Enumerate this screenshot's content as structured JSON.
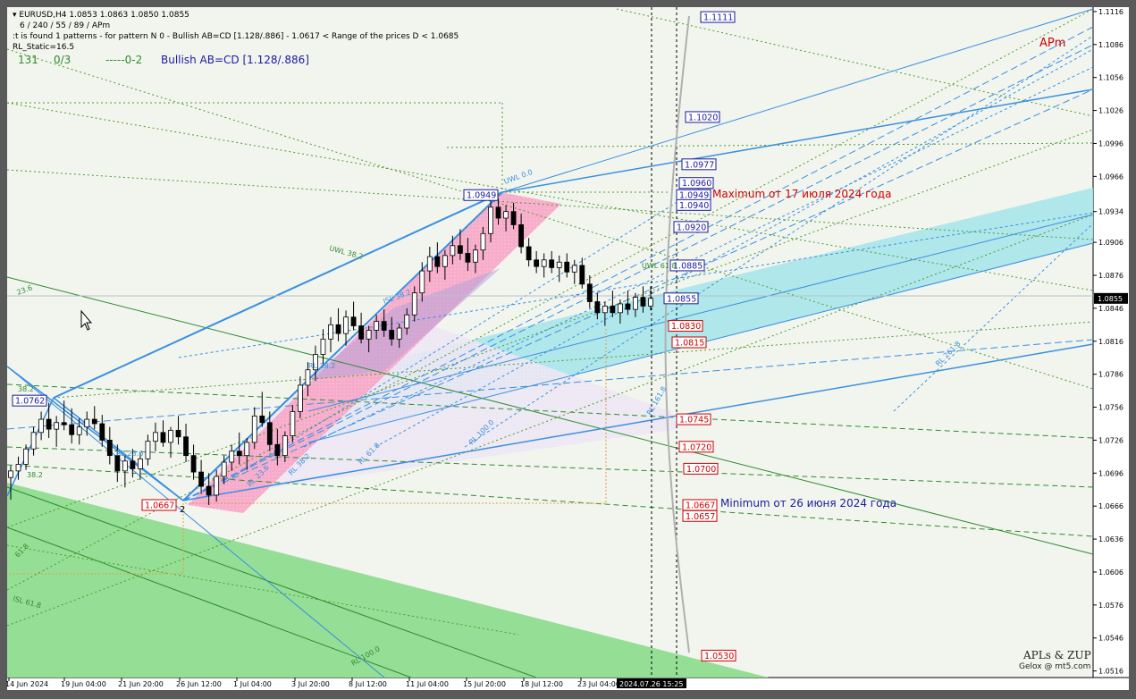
{
  "header": {
    "symbol_line": "EURUSD,H4  1.0853 1.0863 1.0850 1.0855",
    "zigzag_params": "6 / 240 / 55 / 89 / APm",
    "pattern_line": ":t is found 1 patterns  -  for pattern N 0 - Bullish AB=CD [1.128/.886] - 1.0617 < Range of the prices D < 1.0685",
    "rl_static": "RL_Static=16.5",
    "counter_a": "131",
    "counter_b": "0/3",
    "counter_c": "-----0-2",
    "pattern_name": "Bullish AB=CD [1.128/.886]",
    "apm_mark": "APm",
    "signature_1": "APLs & ZUP",
    "signature_2": "Gelox @ mt5.com"
  },
  "annotations": {
    "max_note": "Maximum от 17 июля 2024 года",
    "min_note": "Minimum от 26 июня 2024 года",
    "point_2": "2",
    "fib_labels": [
      "UWL 0.0",
      "UWL 38.2",
      "UWL 61.8",
      "RL 23.6",
      "RL 38.2",
      "RL 61.8",
      "RL 100.0",
      "RL 161.8",
      "RL 261.8",
      "RL 100.0",
      "RL 23.6",
      "23.6",
      "38.2",
      "38.2",
      "61.8",
      "ISL 61.8",
      "ISL 38.2",
      "RL 38.2"
    ]
  },
  "colors": {
    "background": "#f2f5ee",
    "bull_candle": "#ffffff",
    "candle_border": "#000000",
    "blue_channel": "#a8e6ea",
    "pink_zone": "#f7a8c8",
    "green_zone": "#8fdc8f",
    "blue_line": "#3a8fe0",
    "green_line": "#2e8b2e",
    "red_label": "#cc0000",
    "blue_label": "#1a1aa0"
  },
  "chart_data": {
    "type": "candlestick",
    "symbol": "EURUSD",
    "timeframe": "H4",
    "current_price": "1.0855",
    "ylim": [
      1.051,
      1.112
    ],
    "yticks": [
      "1.1116",
      "1.1086",
      "1.1056",
      "1.1026",
      "1.0996",
      "1.0966",
      "1.0934",
      "1.0906",
      "1.0876",
      "1.0846",
      "1.0816",
      "1.0786",
      "1.0756",
      "1.0726",
      "1.0696",
      "1.0666",
      "1.0636",
      "1.0606",
      "1.0576",
      "1.0546",
      "1.0516"
    ],
    "xticks": [
      "14 Jun 2024",
      "19 Jun 04:00",
      "21 Jun 20:00",
      "26 Jun 12:00",
      "1 Jul 04:00",
      "3 Jul 20:00",
      "8 Jul 12:00",
      "11 Jul 04:00",
      "15 Jul 20:00",
      "18 Jul 12:00",
      "23 Jul 04:00"
    ],
    "cursor_time": "2024.07.26 15:25",
    "price_boxes_blue": [
      {
        "label": "1.1111",
        "value": 1.1111
      },
      {
        "label": "1.1020",
        "value": 1.102
      },
      {
        "label": "1.0977",
        "value": 1.0977
      },
      {
        "label": "1.0960",
        "value": 1.096
      },
      {
        "label": "1.0949",
        "value": 1.0949
      },
      {
        "label": "1.0940",
        "value": 1.094
      },
      {
        "label": "1.0920",
        "value": 1.092
      },
      {
        "label": "1.0885",
        "value": 1.0885
      },
      {
        "label": "1.0855",
        "value": 1.0855
      },
      {
        "label": "1.0949",
        "value": 1.0949
      },
      {
        "label": "1.0762",
        "value": 1.0762
      }
    ],
    "price_boxes_red": [
      {
        "label": "1.0830",
        "value": 1.083
      },
      {
        "label": "1.0815",
        "value": 1.0815
      },
      {
        "label": "1.0745",
        "value": 1.0745
      },
      {
        "label": "1.0720",
        "value": 1.072
      },
      {
        "label": "1.0700",
        "value": 1.07
      },
      {
        "label": "1.0667",
        "value": 1.0667
      },
      {
        "label": "1.0657",
        "value": 1.0657
      },
      {
        "label": "1.0530",
        "value": 1.053
      },
      {
        "label": "1.0667",
        "value": 1.0667
      }
    ],
    "candles": [
      {
        "o": 1.0692,
        "h": 1.0703,
        "l": 1.0672,
        "c": 1.0698
      },
      {
        "o": 1.0698,
        "h": 1.0711,
        "l": 1.069,
        "c": 1.0704
      },
      {
        "o": 1.0704,
        "h": 1.0722,
        "l": 1.0699,
        "c": 1.0718
      },
      {
        "o": 1.0718,
        "h": 1.0738,
        "l": 1.0712,
        "c": 1.0733
      },
      {
        "o": 1.0733,
        "h": 1.0752,
        "l": 1.0726,
        "c": 1.0745
      },
      {
        "o": 1.0745,
        "h": 1.076,
        "l": 1.0728,
        "c": 1.0736
      },
      {
        "o": 1.0736,
        "h": 1.0748,
        "l": 1.072,
        "c": 1.0742
      },
      {
        "o": 1.0742,
        "h": 1.0762,
        "l": 1.0735,
        "c": 1.074
      },
      {
        "o": 1.074,
        "h": 1.0755,
        "l": 1.0723,
        "c": 1.0731
      },
      {
        "o": 1.0731,
        "h": 1.0746,
        "l": 1.0722,
        "c": 1.0738
      },
      {
        "o": 1.0738,
        "h": 1.0752,
        "l": 1.073,
        "c": 1.0745
      },
      {
        "o": 1.0745,
        "h": 1.0757,
        "l": 1.0736,
        "c": 1.0741
      },
      {
        "o": 1.0741,
        "h": 1.0749,
        "l": 1.072,
        "c": 1.0726
      },
      {
        "o": 1.0726,
        "h": 1.0738,
        "l": 1.0704,
        "c": 1.0712
      },
      {
        "o": 1.0712,
        "h": 1.0722,
        "l": 1.0688,
        "c": 1.0698
      },
      {
        "o": 1.0698,
        "h": 1.0712,
        "l": 1.0683,
        "c": 1.0707
      },
      {
        "o": 1.0707,
        "h": 1.0718,
        "l": 1.0692,
        "c": 1.07
      },
      {
        "o": 1.07,
        "h": 1.0714,
        "l": 1.069,
        "c": 1.0709
      },
      {
        "o": 1.0709,
        "h": 1.0731,
        "l": 1.0703,
        "c": 1.0725
      },
      {
        "o": 1.0725,
        "h": 1.0742,
        "l": 1.0716,
        "c": 1.0733
      },
      {
        "o": 1.0733,
        "h": 1.0744,
        "l": 1.072,
        "c": 1.0724
      },
      {
        "o": 1.0724,
        "h": 1.0738,
        "l": 1.071,
        "c": 1.0735
      },
      {
        "o": 1.0735,
        "h": 1.0748,
        "l": 1.0722,
        "c": 1.0729
      },
      {
        "o": 1.0729,
        "h": 1.0741,
        "l": 1.0706,
        "c": 1.0712
      },
      {
        "o": 1.0712,
        "h": 1.0722,
        "l": 1.069,
        "c": 1.0697
      },
      {
        "o": 1.0697,
        "h": 1.0708,
        "l": 1.0677,
        "c": 1.0684
      },
      {
        "o": 1.0684,
        "h": 1.0696,
        "l": 1.0667,
        "c": 1.0676
      },
      {
        "o": 1.0676,
        "h": 1.0699,
        "l": 1.067,
        "c": 1.0693
      },
      {
        "o": 1.0693,
        "h": 1.0712,
        "l": 1.0686,
        "c": 1.0706
      },
      {
        "o": 1.0706,
        "h": 1.0722,
        "l": 1.0698,
        "c": 1.0716
      },
      {
        "o": 1.0716,
        "h": 1.0733,
        "l": 1.0704,
        "c": 1.0712
      },
      {
        "o": 1.0712,
        "h": 1.0728,
        "l": 1.0699,
        "c": 1.0724
      },
      {
        "o": 1.0724,
        "h": 1.0756,
        "l": 1.0718,
        "c": 1.0748
      },
      {
        "o": 1.0748,
        "h": 1.077,
        "l": 1.0738,
        "c": 1.0742
      },
      {
        "o": 1.0742,
        "h": 1.0752,
        "l": 1.0716,
        "c": 1.0722
      },
      {
        "o": 1.0722,
        "h": 1.0736,
        "l": 1.0703,
        "c": 1.0712
      },
      {
        "o": 1.0712,
        "h": 1.0734,
        "l": 1.0706,
        "c": 1.073
      },
      {
        "o": 1.073,
        "h": 1.0758,
        "l": 1.0724,
        "c": 1.0752
      },
      {
        "o": 1.0752,
        "h": 1.0784,
        "l": 1.0746,
        "c": 1.0776
      },
      {
        "o": 1.0776,
        "h": 1.0797,
        "l": 1.0766,
        "c": 1.079
      },
      {
        "o": 1.079,
        "h": 1.0812,
        "l": 1.078,
        "c": 1.0804
      },
      {
        "o": 1.0804,
        "h": 1.0827,
        "l": 1.0794,
        "c": 1.0818
      },
      {
        "o": 1.0818,
        "h": 1.0838,
        "l": 1.0806,
        "c": 1.0831
      },
      {
        "o": 1.0831,
        "h": 1.0846,
        "l": 1.0816,
        "c": 1.0823
      },
      {
        "o": 1.0823,
        "h": 1.0844,
        "l": 1.0812,
        "c": 1.0838
      },
      {
        "o": 1.0838,
        "h": 1.0852,
        "l": 1.0826,
        "c": 1.083
      },
      {
        "o": 1.083,
        "h": 1.0842,
        "l": 1.0814,
        "c": 1.0818
      },
      {
        "o": 1.0818,
        "h": 1.083,
        "l": 1.0806,
        "c": 1.0826
      },
      {
        "o": 1.0826,
        "h": 1.084,
        "l": 1.0818,
        "c": 1.0834
      },
      {
        "o": 1.0834,
        "h": 1.0845,
        "l": 1.082,
        "c": 1.0826
      },
      {
        "o": 1.0826,
        "h": 1.0838,
        "l": 1.0812,
        "c": 1.0818
      },
      {
        "o": 1.0818,
        "h": 1.0832,
        "l": 1.081,
        "c": 1.0828
      },
      {
        "o": 1.0828,
        "h": 1.0846,
        "l": 1.0822,
        "c": 1.084
      },
      {
        "o": 1.084,
        "h": 1.0866,
        "l": 1.0834,
        "c": 1.086
      },
      {
        "o": 1.086,
        "h": 1.0888,
        "l": 1.0852,
        "c": 1.088
      },
      {
        "o": 1.088,
        "h": 1.0902,
        "l": 1.087,
        "c": 1.0893
      },
      {
        "o": 1.0893,
        "h": 1.0906,
        "l": 1.0878,
        "c": 1.0884
      },
      {
        "o": 1.0884,
        "h": 1.0899,
        "l": 1.0872,
        "c": 1.0894
      },
      {
        "o": 1.0894,
        "h": 1.0912,
        "l": 1.0886,
        "c": 1.0903
      },
      {
        "o": 1.0903,
        "h": 1.0918,
        "l": 1.089,
        "c": 1.0896
      },
      {
        "o": 1.0896,
        "h": 1.091,
        "l": 1.088,
        "c": 1.0888
      },
      {
        "o": 1.0888,
        "h": 1.0904,
        "l": 1.0878,
        "c": 1.0899
      },
      {
        "o": 1.0899,
        "h": 1.092,
        "l": 1.089,
        "c": 1.0914
      },
      {
        "o": 1.0914,
        "h": 1.0949,
        "l": 1.0906,
        "c": 1.0938
      },
      {
        "o": 1.0938,
        "h": 1.0946,
        "l": 1.0922,
        "c": 1.0928
      },
      {
        "o": 1.0928,
        "h": 1.094,
        "l": 1.0916,
        "c": 1.0934
      },
      {
        "o": 1.0934,
        "h": 1.0942,
        "l": 1.0918,
        "c": 1.0922
      },
      {
        "o": 1.0922,
        "h": 1.0932,
        "l": 1.0896,
        "c": 1.0902
      },
      {
        "o": 1.0902,
        "h": 1.091,
        "l": 1.0884,
        "c": 1.089
      },
      {
        "o": 1.089,
        "h": 1.0898,
        "l": 1.0878,
        "c": 1.0884
      },
      {
        "o": 1.0884,
        "h": 1.0896,
        "l": 1.0874,
        "c": 1.089
      },
      {
        "o": 1.089,
        "h": 1.0898,
        "l": 1.0878,
        "c": 1.0883
      },
      {
        "o": 1.0883,
        "h": 1.0894,
        "l": 1.087,
        "c": 1.0888
      },
      {
        "o": 1.0888,
        "h": 1.0896,
        "l": 1.0874,
        "c": 1.0879
      },
      {
        "o": 1.0879,
        "h": 1.089,
        "l": 1.0868,
        "c": 1.0885
      },
      {
        "o": 1.0885,
        "h": 1.0892,
        "l": 1.0864,
        "c": 1.0868
      },
      {
        "o": 1.0868,
        "h": 1.0876,
        "l": 1.0846,
        "c": 1.0852
      },
      {
        "o": 1.0852,
        "h": 1.086,
        "l": 1.0836,
        "c": 1.0842
      },
      {
        "o": 1.0842,
        "h": 1.0852,
        "l": 1.083,
        "c": 1.0848
      },
      {
        "o": 1.0848,
        "h": 1.0862,
        "l": 1.0838,
        "c": 1.0842
      },
      {
        "o": 1.0842,
        "h": 1.0854,
        "l": 1.0832,
        "c": 1.085
      },
      {
        "o": 1.085,
        "h": 1.0862,
        "l": 1.084,
        "c": 1.0845
      },
      {
        "o": 1.0845,
        "h": 1.086,
        "l": 1.0838,
        "c": 1.0856
      },
      {
        "o": 1.0856,
        "h": 1.0866,
        "l": 1.0842,
        "c": 1.0848
      },
      {
        "o": 1.0848,
        "h": 1.0866,
        "l": 1.0844,
        "c": 1.0855
      }
    ]
  }
}
